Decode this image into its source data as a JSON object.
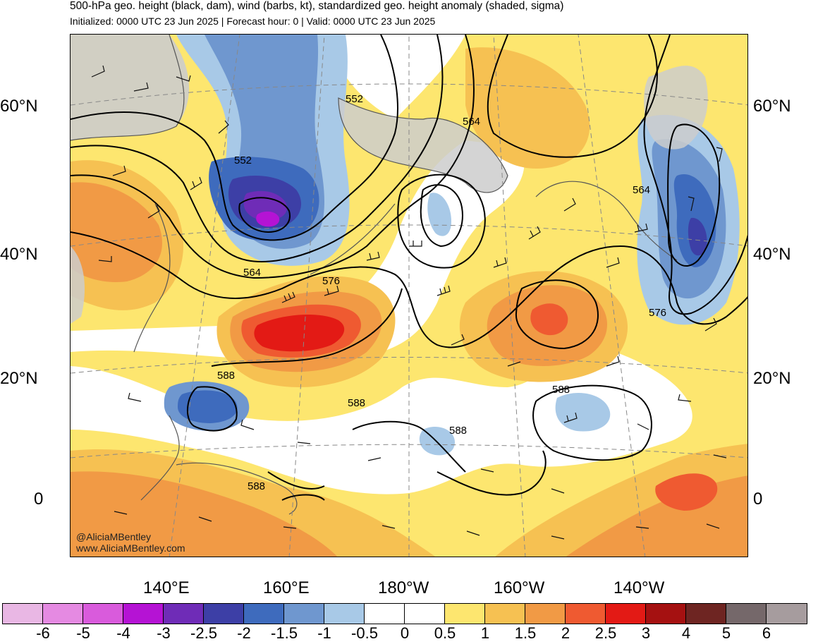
{
  "header": {
    "title": "500-hPa geo. height (black, dam), wind (barbs, kt), standardized geo. height anomaly (shaded, sigma)",
    "subtitle": "Initialized: 0000 UTC 23 Jun 2025 | Forecast hour: 0 | Valid: 0000 UTC 23 Jun 2025"
  },
  "axes": {
    "lat_labels": [
      "60°N",
      "40°N",
      "20°N",
      "0"
    ],
    "lon_labels": [
      "140°E",
      "160°E",
      "180°W",
      "160°W",
      "140°W"
    ]
  },
  "contour_labels": [
    "552",
    "564",
    "552",
    "564",
    "576",
    "564",
    "588",
    "588",
    "588",
    "588",
    "588",
    "576"
  ],
  "colorbar": {
    "colors": [
      "#e9b7e4",
      "#e58ae2",
      "#d95bdc",
      "#b513d4",
      "#6f2cb7",
      "#3d3fa6",
      "#3e6bbd",
      "#6f97cf",
      "#a8c9e7",
      "#ffffff",
      "#ffffff",
      "#fde66f",
      "#f6c152",
      "#f19a45",
      "#ef5a31",
      "#e31a15",
      "#a51111",
      "#6e2522",
      "#75686a",
      "#a69c9e"
    ],
    "labels": [
      "-6",
      "-5",
      "-4",
      "-3",
      "-2.5",
      "-2",
      "-1.5",
      "-1",
      "-0.5",
      "0",
      "0.5",
      "1",
      "1.5",
      "2",
      "2.5",
      "3",
      "4",
      "5",
      "6"
    ]
  },
  "map": {
    "land_color": "#cccccc",
    "credits": [
      "@AliciaMBentley",
      "www.AliciaMBentley.com"
    ]
  }
}
